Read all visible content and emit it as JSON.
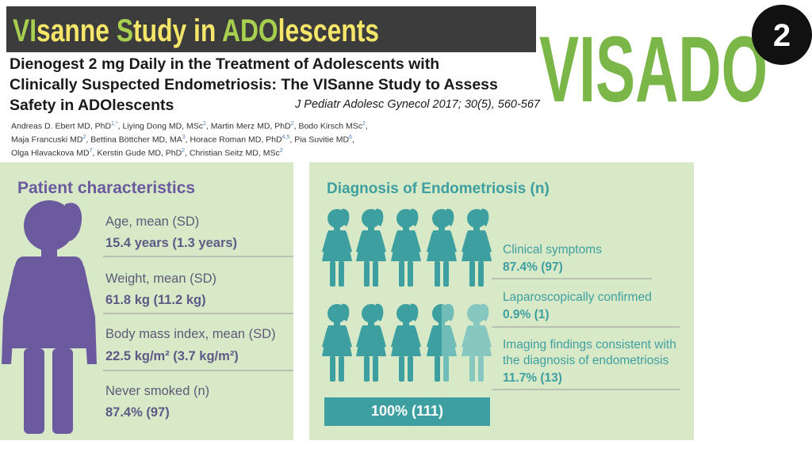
{
  "header": {
    "banner": [
      {
        "text": "VI",
        "highlight": true
      },
      {
        "text": "sanne ",
        "highlight": false
      },
      {
        "text": "S",
        "highlight": true
      },
      {
        "text": "tudy in ",
        "highlight": false
      },
      {
        "text": "ADO",
        "highlight": true
      },
      {
        "text": "lescents",
        "highlight": false
      }
    ],
    "logo": "VISADO",
    "badge": "2",
    "title_lines": [
      "Dienogest 2 mg Daily in the Treatment of Adolescents with",
      "Clinically Suspected Endometriosis: The VISanne Study to Assess",
      "Safety in ADOlescents"
    ],
    "citation": "J Pediatr Adolesc Gynecol 2017; 30(5), 560-567",
    "author_lines": [
      [
        {
          "name": "Andreas D. Ebert MD, PhD",
          "sup": "1,*"
        },
        {
          "name": "Liying Dong MD, MSc",
          "sup": "2"
        },
        {
          "name": "Martin Merz MD, PhD",
          "sup": "2"
        },
        {
          "name": "Bodo Kirsch MSc",
          "sup": "2"
        }
      ],
      [
        {
          "name": "Maja Francuski MD",
          "sup": "2"
        },
        {
          "name": "Bettina Böttcher MD, MA",
          "sup": "3"
        },
        {
          "name": "Horace Roman MD, PhD",
          "sup": "4,5"
        },
        {
          "name": "Pia Suvitie MD",
          "sup": "6"
        }
      ],
      [
        {
          "name": "Olga Hlavackova MD",
          "sup": "7"
        },
        {
          "name": "Kerstin Gude MD, PhD",
          "sup": "2"
        },
        {
          "name": "Christian Seitz MD, MSc",
          "sup": "2"
        }
      ]
    ]
  },
  "patient": {
    "title": "Patient characteristics",
    "items": [
      {
        "label": "Age, mean (SD)",
        "value": "15.4 years (1.3 years)"
      },
      {
        "label": "Weight, mean (SD)",
        "value": "61.8 kg (11.2 kg)"
      },
      {
        "label": "Body mass index, mean (SD)",
        "value": "22.5 kg/m² (3.7 kg/m²)"
      },
      {
        "label": "Never smoked (n)",
        "value": "87.4% (97)"
      }
    ]
  },
  "diagnosis": {
    "title": "Diagnosis of Endometriosis (n)",
    "items": [
      {
        "label": "Clinical symptoms",
        "value": "87.4% (97)"
      },
      {
        "label": "Laparoscopically confirmed",
        "value": "0.9% (1)"
      },
      {
        "label": "Imaging findings consistent with the diagnosis of endometriosis",
        "value": "11.7% (13)"
      }
    ],
    "total": "100% (111)"
  }
}
